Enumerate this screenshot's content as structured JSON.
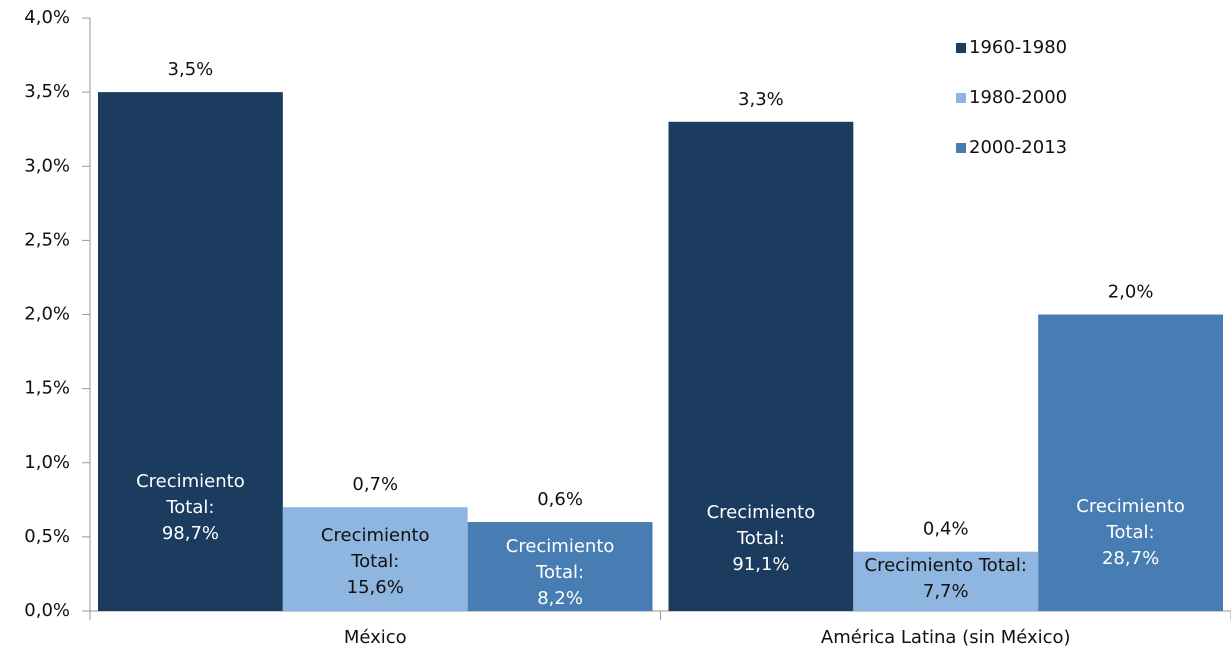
{
  "chart_data": {
    "type": "bar",
    "categories": [
      "México",
      "América Latina (sin México)"
    ],
    "series": [
      {
        "name": "1960-1980",
        "color": "#1b3b5f",
        "values": [
          3.5,
          3.3
        ],
        "value_labels": [
          "3,5%",
          "3,3%"
        ],
        "notes": [
          [
            "Crecimiento",
            "Total:",
            "98,7%"
          ],
          [
            "Crecimiento",
            "Total:",
            "91,1%"
          ]
        ]
      },
      {
        "name": "1980-2000",
        "color": "#8fb6e0",
        "values": [
          0.7,
          0.4
        ],
        "value_labels": [
          "0,7%",
          "0,4%"
        ],
        "notes": [
          [
            "Crecimiento",
            "Total:",
            "15,6%"
          ],
          [
            "Crecimiento Total:",
            "7,7%"
          ]
        ]
      },
      {
        "name": "2000-2013",
        "color": "#487db3",
        "values": [
          0.6,
          2.0
        ],
        "value_labels": [
          "0,6%",
          "2,0%"
        ],
        "notes": [
          [
            "Crecimiento",
            "Total:",
            "8,2%"
          ],
          [
            "Crecimiento",
            "Total:",
            "28,7%"
          ]
        ]
      }
    ],
    "ylim": [
      0,
      4
    ],
    "yticks": [
      {
        "value": 0,
        "label": "0,0%"
      },
      {
        "value": 0.5,
        "label": "0,5%"
      },
      {
        "value": 1,
        "label": "1,0%"
      },
      {
        "value": 1.5,
        "label": "1,5%"
      },
      {
        "value": 2,
        "label": "2,0%"
      },
      {
        "value": 2.5,
        "label": "2,5%"
      },
      {
        "value": 3,
        "label": "3,0%"
      },
      {
        "value": 3.5,
        "label": "3,5%"
      },
      {
        "value": 4,
        "label": "4,0%"
      }
    ],
    "legend": "top-right"
  }
}
